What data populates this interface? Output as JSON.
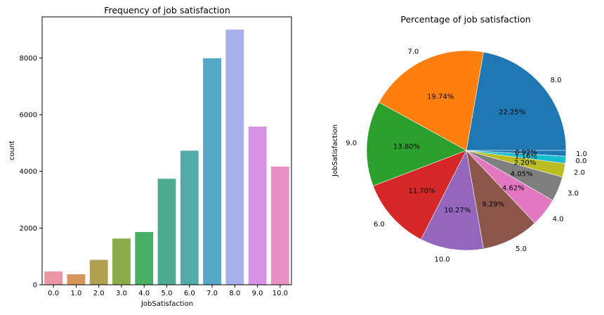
{
  "chart_data": [
    {
      "type": "bar",
      "title": "Frequency of job satisfaction",
      "xlabel": "JobSatisfaction",
      "ylabel": "count",
      "categories": [
        "0.0",
        "1.0",
        "2.0",
        "3.0",
        "4.0",
        "5.0",
        "6.0",
        "7.0",
        "8.0",
        "9.0",
        "10.0"
      ],
      "values": [
        470,
        370,
        880,
        1630,
        1860,
        3740,
        4730,
        7990,
        9000,
        5580,
        4170
      ],
      "ylim": [
        0,
        9450
      ],
      "yticks": [
        0,
        2000,
        4000,
        6000,
        8000
      ],
      "colors": [
        "#ea96a3",
        "#d8965a",
        "#b0a04f",
        "#8aab4a",
        "#48b065",
        "#4eac93",
        "#52aaa9",
        "#54a8c6",
        "#a8b0eb",
        "#d892e3",
        "#e88fc6"
      ],
      "grid": false,
      "legend": "none"
    },
    {
      "type": "pie",
      "title": "Percentage of job satisfaction",
      "ylabel": "JobSatisfaction",
      "slices": [
        {
          "label": "8.0",
          "pct_label": "22.25%",
          "value": 22.25,
          "color": "#1f77b4"
        },
        {
          "label": "7.0",
          "pct_label": "19.74%",
          "value": 19.74,
          "color": "#ff7f0e"
        },
        {
          "label": "9.0",
          "pct_label": "13.80%",
          "value": 13.8,
          "color": "#2ca02c"
        },
        {
          "label": "6.0",
          "pct_label": "11.70%",
          "value": 11.7,
          "color": "#d62728"
        },
        {
          "label": "10.0",
          "pct_label": "10.27%",
          "value": 10.27,
          "color": "#9467bd"
        },
        {
          "label": "5.0",
          "pct_label": "9.29%",
          "value": 9.29,
          "color": "#8c564b"
        },
        {
          "label": "4.0",
          "pct_label": "4.62%",
          "value": 4.62,
          "color": "#e377c2"
        },
        {
          "label": "3.0",
          "pct_label": "4.05%",
          "value": 4.05,
          "color": "#7f7f7f"
        },
        {
          "label": "2.0",
          "pct_label": "2.20%",
          "value": 2.2,
          "color": "#bcbd22"
        },
        {
          "label": "0.0",
          "pct_label": "1.16%",
          "value": 1.16,
          "color": "#17becf"
        },
        {
          "label": "1.0",
          "pct_label": "0.92%",
          "value": 0.92,
          "color": "#1f77b4"
        }
      ],
      "start_angle_deg": 0,
      "direction": "counterclockwise",
      "legend": "none"
    }
  ]
}
